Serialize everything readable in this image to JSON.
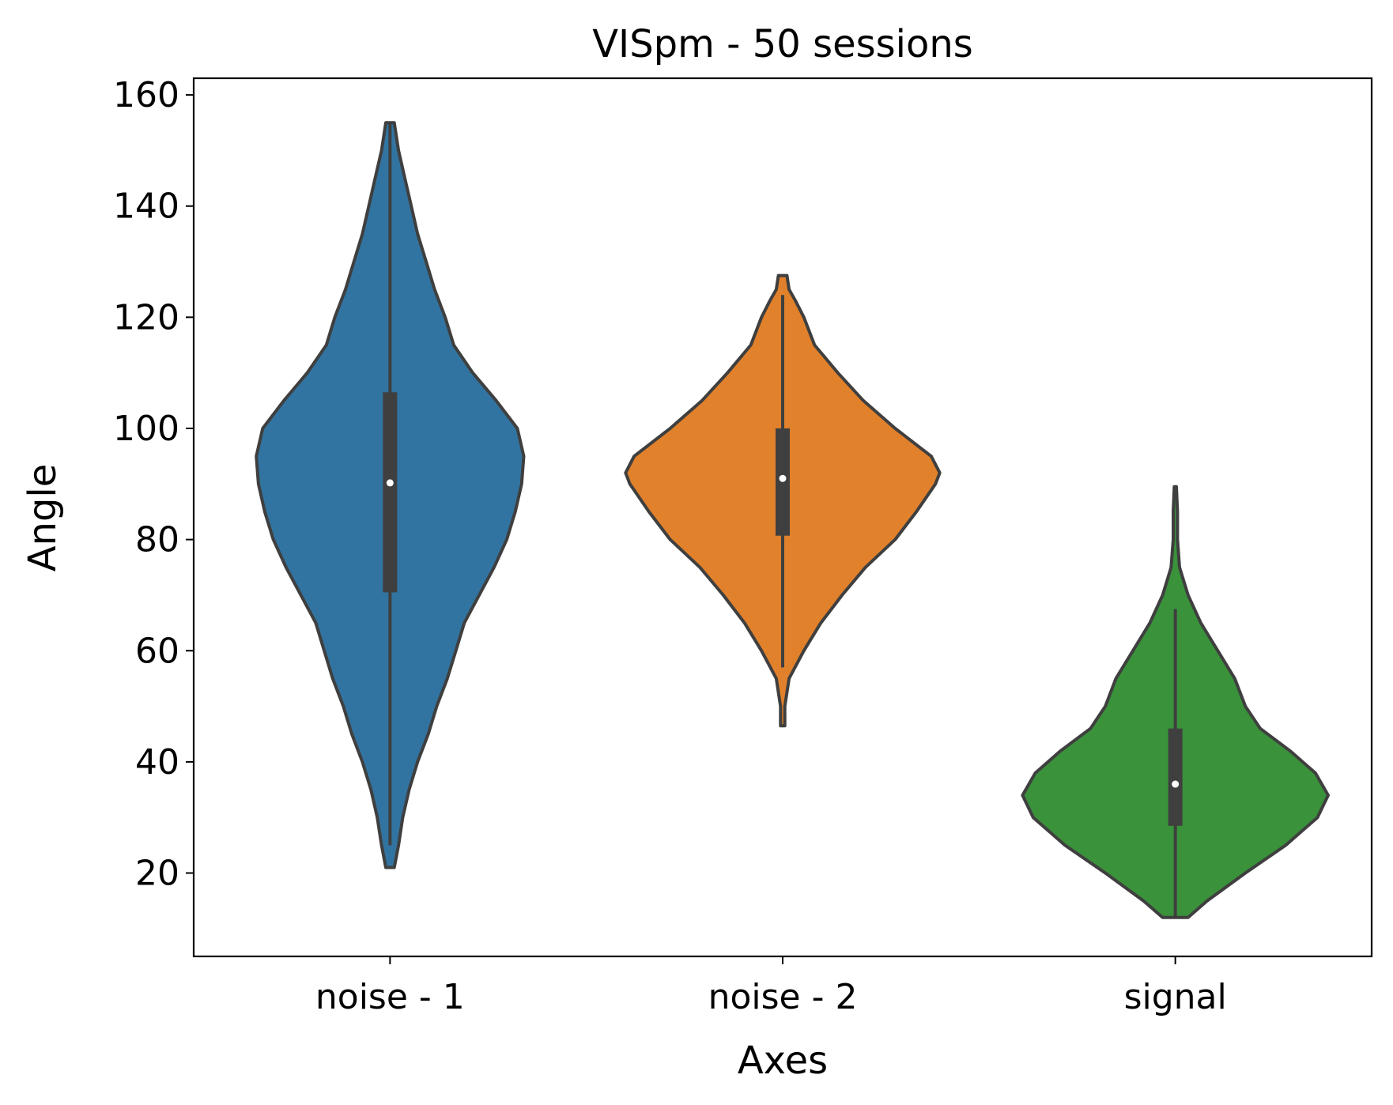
{
  "chart_data": {
    "type": "violin",
    "title": "VISpm - 50 sessions",
    "xlabel": "Axes",
    "ylabel": "Angle",
    "ylim": [
      5,
      163
    ],
    "yticks": [
      20,
      40,
      60,
      80,
      100,
      120,
      140,
      160
    ],
    "grid": false,
    "categories": [
      "noise - 1",
      "noise - 2",
      "signal"
    ],
    "series": [
      {
        "color": "#3274a1",
        "min": 21,
        "max": 155,
        "q1": 70.5,
        "median": 90.2,
        "q3": 106.5,
        "whisker_low": 25,
        "whisker_high": 155,
        "density": [
          [
            21,
            0.02
          ],
          [
            25,
            0.04
          ],
          [
            30,
            0.06
          ],
          [
            35,
            0.09
          ],
          [
            40,
            0.13
          ],
          [
            45,
            0.18
          ],
          [
            50,
            0.22
          ],
          [
            55,
            0.27
          ],
          [
            60,
            0.31
          ],
          [
            65,
            0.35
          ],
          [
            70,
            0.42
          ],
          [
            75,
            0.49
          ],
          [
            80,
            0.55
          ],
          [
            85,
            0.59
          ],
          [
            90,
            0.62
          ],
          [
            95,
            0.63
          ],
          [
            100,
            0.6
          ],
          [
            105,
            0.5
          ],
          [
            110,
            0.39
          ],
          [
            115,
            0.3
          ],
          [
            120,
            0.26
          ],
          [
            125,
            0.21
          ],
          [
            130,
            0.17
          ],
          [
            135,
            0.13
          ],
          [
            140,
            0.1
          ],
          [
            145,
            0.07
          ],
          [
            150,
            0.04
          ],
          [
            155,
            0.02
          ]
        ]
      },
      {
        "color": "#e1812c",
        "min": 46.5,
        "max": 127.5,
        "q1": 80.7,
        "median": 91.0,
        "q3": 100.0,
        "whisker_low": 57,
        "whisker_high": 124,
        "density": [
          [
            46.5,
            0.01
          ],
          [
            50,
            0.01
          ],
          [
            55,
            0.03
          ],
          [
            60,
            0.1
          ],
          [
            65,
            0.18
          ],
          [
            70,
            0.28
          ],
          [
            75,
            0.39
          ],
          [
            80,
            0.53
          ],
          [
            85,
            0.63
          ],
          [
            90,
            0.72
          ],
          [
            92,
            0.74
          ],
          [
            95,
            0.7
          ],
          [
            100,
            0.53
          ],
          [
            105,
            0.38
          ],
          [
            110,
            0.26
          ],
          [
            115,
            0.15
          ],
          [
            120,
            0.1
          ],
          [
            123,
            0.06
          ],
          [
            125,
            0.03
          ],
          [
            127.5,
            0.02
          ]
        ]
      },
      {
        "color": "#3a923a",
        "min": 12,
        "max": 89.5,
        "q1": 28.5,
        "median": 36.0,
        "q3": 46.0,
        "whisker_low": 12,
        "whisker_high": 67.5,
        "density": [
          [
            12,
            0.06
          ],
          [
            15,
            0.15
          ],
          [
            20,
            0.33
          ],
          [
            25,
            0.52
          ],
          [
            30,
            0.67
          ],
          [
            34,
            0.72
          ],
          [
            38,
            0.66
          ],
          [
            42,
            0.54
          ],
          [
            46,
            0.4
          ],
          [
            50,
            0.33
          ],
          [
            55,
            0.28
          ],
          [
            60,
            0.2
          ],
          [
            65,
            0.12
          ],
          [
            70,
            0.06
          ],
          [
            75,
            0.02
          ],
          [
            80,
            0.01
          ],
          [
            85,
            0.01
          ],
          [
            89.5,
            0.005
          ]
        ]
      }
    ]
  }
}
